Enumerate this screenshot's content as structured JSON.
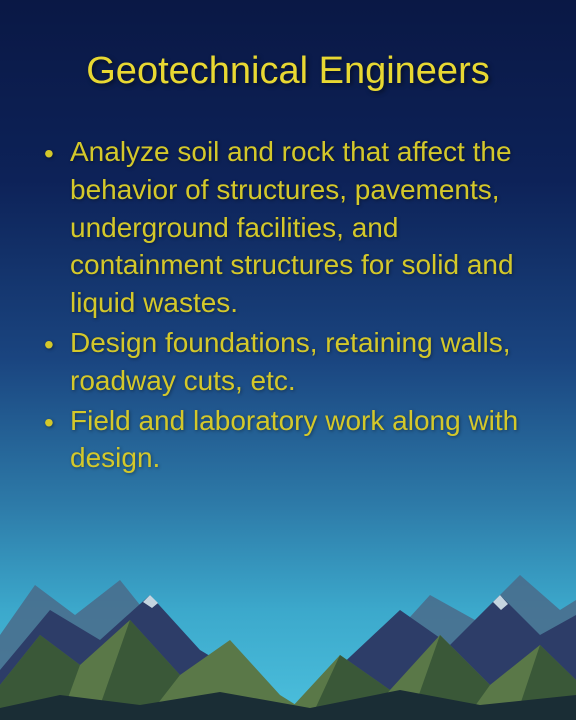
{
  "slide": {
    "title": "Geotechnical Engineers",
    "title_color": "#e8d832",
    "body_color": "#d4c82a",
    "bullets": [
      "Analyze soil and rock  that affect the behavior of struc­tures, pavements, underground facilities, and containment structures for solid and liquid wastes.",
      "Design foundations, retaining walls, roadway cuts, etc.",
      "Field and laboratory work along with design."
    ]
  },
  "visual": {
    "sky_gradient_top": "#0a1845",
    "sky_gradient_bottom": "#4cc0dd",
    "mountain_colors": {
      "back": "#4a6b8a",
      "mid": "#3a4d78",
      "front_light": "#6b8555",
      "front_dark": "#3a5440",
      "shadow": "#1a2d3d"
    },
    "title_fontsize": 38,
    "body_fontsize": 28
  }
}
